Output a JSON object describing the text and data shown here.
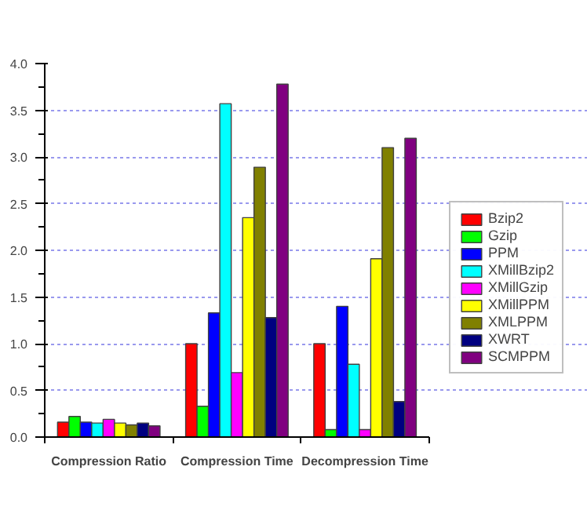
{
  "chart_data": {
    "type": "bar",
    "categories": [
      "Compression Ratio",
      "Compression Time",
      "Decompression Time"
    ],
    "series": [
      {
        "name": "Bzip2",
        "color": "#ff0000",
        "values": [
          0.16,
          1.0,
          1.0
        ]
      },
      {
        "name": "Gzip",
        "color": "#00ff00",
        "values": [
          0.22,
          0.33,
          0.08
        ]
      },
      {
        "name": "PPM",
        "color": "#0000ff",
        "values": [
          0.16,
          1.33,
          1.4
        ]
      },
      {
        "name": "XMillBzip2",
        "color": "#00ffff",
        "values": [
          0.15,
          3.57,
          0.78
        ]
      },
      {
        "name": "XMillGzip",
        "color": "#ff00ff",
        "values": [
          0.19,
          0.69,
          0.08
        ]
      },
      {
        "name": "XMillPPM",
        "color": "#ffff00",
        "values": [
          0.15,
          2.35,
          1.91
        ]
      },
      {
        "name": "XMLPPM",
        "color": "#808000",
        "values": [
          0.13,
          2.89,
          3.1
        ]
      },
      {
        "name": "XWRT",
        "color": "#000080",
        "values": [
          0.15,
          1.28,
          0.38
        ]
      },
      {
        "name": "SCMPPM",
        "color": "#800080",
        "values": [
          0.12,
          3.78,
          3.2
        ]
      }
    ],
    "ylim": [
      0,
      4
    ],
    "yticks": [
      {
        "value": 0,
        "label": "0.0"
      },
      {
        "value": 0.5,
        "label": "0.5"
      },
      {
        "value": 1,
        "label": "1.0"
      },
      {
        "value": 1.5,
        "label": "1.5"
      },
      {
        "value": 2,
        "label": "2.0"
      },
      {
        "value": 2.5,
        "label": "2.5"
      },
      {
        "value": 3,
        "label": "3.0"
      },
      {
        "value": 3.5,
        "label": "3.5"
      },
      {
        "value": 4,
        "label": "4.0"
      }
    ],
    "grid": "y",
    "legend": "right"
  }
}
